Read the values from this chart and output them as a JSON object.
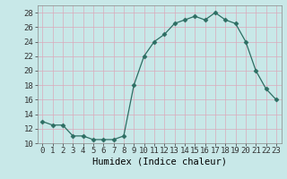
{
  "x": [
    0,
    1,
    2,
    3,
    4,
    5,
    6,
    7,
    8,
    9,
    10,
    11,
    12,
    13,
    14,
    15,
    16,
    17,
    18,
    19,
    20,
    21,
    22,
    23
  ],
  "y": [
    13.0,
    12.5,
    12.5,
    11.0,
    11.0,
    10.5,
    10.5,
    10.5,
    11.0,
    18.0,
    22.0,
    24.0,
    25.0,
    26.5,
    27.0,
    27.5,
    27.0,
    28.0,
    27.0,
    26.5,
    24.0,
    20.0,
    17.5,
    16.0
  ],
  "line_color": "#2d6e63",
  "marker": "D",
  "marker_size": 2.5,
  "bg_color": "#c8e8e8",
  "grid_color": "#daaabb",
  "xlabel": "Humidex (Indice chaleur)",
  "ylim": [
    10,
    29
  ],
  "yticks": [
    10,
    12,
    14,
    16,
    18,
    20,
    22,
    24,
    26,
    28
  ],
  "xticks": [
    0,
    1,
    2,
    3,
    4,
    5,
    6,
    7,
    8,
    9,
    10,
    11,
    12,
    13,
    14,
    15,
    16,
    17,
    18,
    19,
    20,
    21,
    22,
    23
  ],
  "xlabel_fontsize": 7.5,
  "tick_fontsize": 6.5,
  "title": ""
}
